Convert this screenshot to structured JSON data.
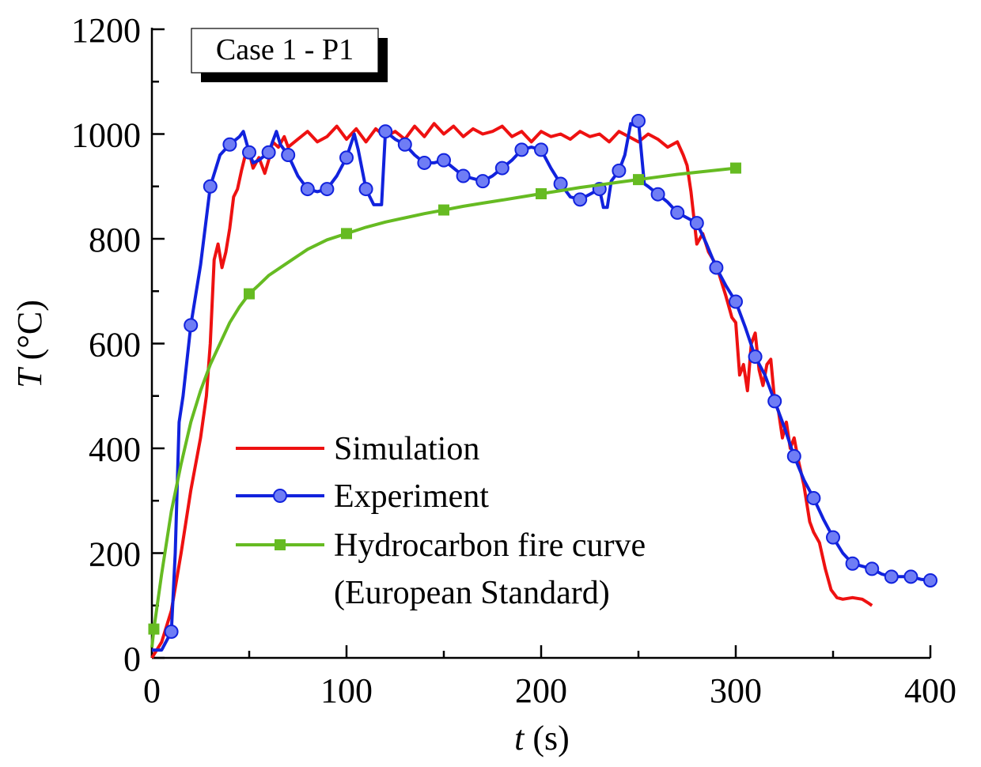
{
  "chart_data": {
    "type": "line",
    "annotation": "Case 1 - P1",
    "xlabel_var": "t",
    "xlabel_unit": " (s)",
    "ylabel_var": "T",
    "ylabel_unit": " (°C)",
    "xlim": [
      0,
      400
    ],
    "ylim": [
      0,
      1200
    ],
    "x_ticks": [
      0,
      100,
      200,
      300,
      400
    ],
    "y_ticks": [
      0,
      200,
      400,
      600,
      800,
      1000,
      1200
    ],
    "legend_position": "bottom-center",
    "series": [
      {
        "name": "Simulation",
        "color": "#ee1111",
        "marker": "none",
        "points": [
          [
            0,
            0
          ],
          [
            5,
            30
          ],
          [
            10,
            90
          ],
          [
            15,
            200
          ],
          [
            20,
            320
          ],
          [
            25,
            420
          ],
          [
            28,
            500
          ],
          [
            30,
            600
          ],
          [
            32,
            760
          ],
          [
            34,
            790
          ],
          [
            36,
            745
          ],
          [
            38,
            775
          ],
          [
            40,
            820
          ],
          [
            42,
            880
          ],
          [
            44,
            895
          ],
          [
            46,
            930
          ],
          [
            48,
            960
          ],
          [
            50,
            965
          ],
          [
            52,
            935
          ],
          [
            55,
            955
          ],
          [
            58,
            925
          ],
          [
            60,
            950
          ],
          [
            62,
            985
          ],
          [
            65,
            975
          ],
          [
            68,
            995
          ],
          [
            70,
            975
          ],
          [
            75,
            990
          ],
          [
            80,
            1005
          ],
          [
            85,
            985
          ],
          [
            90,
            995
          ],
          [
            95,
            1015
          ],
          [
            100,
            990
          ],
          [
            105,
            1010
          ],
          [
            110,
            985
          ],
          [
            115,
            1010
          ],
          [
            120,
            995
          ],
          [
            125,
            1005
          ],
          [
            130,
            990
          ],
          [
            135,
            1015
          ],
          [
            140,
            995
          ],
          [
            145,
            1020
          ],
          [
            150,
            1000
          ],
          [
            155,
            1015
          ],
          [
            160,
            995
          ],
          [
            165,
            1010
          ],
          [
            170,
            1000
          ],
          [
            175,
            1005
          ],
          [
            180,
            1015
          ],
          [
            185,
            995
          ],
          [
            190,
            1005
          ],
          [
            195,
            985
          ],
          [
            200,
            1005
          ],
          [
            205,
            995
          ],
          [
            210,
            1000
          ],
          [
            215,
            990
          ],
          [
            220,
            1005
          ],
          [
            225,
            995
          ],
          [
            230,
            1000
          ],
          [
            235,
            985
          ],
          [
            240,
            1005
          ],
          [
            245,
            995
          ],
          [
            250,
            985
          ],
          [
            255,
            1000
          ],
          [
            260,
            990
          ],
          [
            265,
            975
          ],
          [
            270,
            985
          ],
          [
            273,
            960
          ],
          [
            275,
            940
          ],
          [
            277,
            890
          ],
          [
            280,
            790
          ],
          [
            283,
            810
          ],
          [
            286,
            775
          ],
          [
            290,
            750
          ],
          [
            295,
            690
          ],
          [
            298,
            650
          ],
          [
            300,
            640
          ],
          [
            302,
            540
          ],
          [
            304,
            560
          ],
          [
            306,
            510
          ],
          [
            308,
            600
          ],
          [
            310,
            620
          ],
          [
            312,
            550
          ],
          [
            314,
            520
          ],
          [
            316,
            560
          ],
          [
            318,
            570
          ],
          [
            320,
            490
          ],
          [
            322,
            470
          ],
          [
            324,
            420
          ],
          [
            326,
            450
          ],
          [
            328,
            400
          ],
          [
            330,
            420
          ],
          [
            332,
            380
          ],
          [
            335,
            330
          ],
          [
            338,
            260
          ],
          [
            340,
            240
          ],
          [
            343,
            220
          ],
          [
            346,
            170
          ],
          [
            349,
            130
          ],
          [
            352,
            115
          ],
          [
            355,
            112
          ],
          [
            360,
            115
          ],
          [
            365,
            112
          ],
          [
            368,
            105
          ],
          [
            370,
            100
          ]
        ]
      },
      {
        "name": "Experiment",
        "color": "#1122dd",
        "marker": "circle",
        "points": [
          [
            0,
            15
          ],
          [
            5,
            15
          ],
          [
            10,
            50
          ],
          [
            12,
            200
          ],
          [
            14,
            450
          ],
          [
            16,
            500
          ],
          [
            20,
            635
          ],
          [
            25,
            750
          ],
          [
            30,
            900
          ],
          [
            35,
            960
          ],
          [
            40,
            980
          ],
          [
            45,
            995
          ],
          [
            47,
            1005
          ],
          [
            50,
            965
          ],
          [
            52,
            945
          ],
          [
            55,
            950
          ],
          [
            60,
            965
          ],
          [
            64,
            1005
          ],
          [
            66,
            980
          ],
          [
            70,
            960
          ],
          [
            75,
            920
          ],
          [
            80,
            895
          ],
          [
            85,
            890
          ],
          [
            90,
            895
          ],
          [
            95,
            920
          ],
          [
            100,
            955
          ],
          [
            104,
            1000
          ],
          [
            106,
            970
          ],
          [
            110,
            895
          ],
          [
            114,
            865
          ],
          [
            118,
            865
          ],
          [
            120,
            1005
          ],
          [
            125,
            990
          ],
          [
            130,
            980
          ],
          [
            135,
            960
          ],
          [
            140,
            945
          ],
          [
            145,
            945
          ],
          [
            150,
            950
          ],
          [
            155,
            935
          ],
          [
            160,
            920
          ],
          [
            165,
            915
          ],
          [
            170,
            910
          ],
          [
            175,
            920
          ],
          [
            180,
            935
          ],
          [
            185,
            950
          ],
          [
            190,
            970
          ],
          [
            195,
            975
          ],
          [
            200,
            970
          ],
          [
            205,
            935
          ],
          [
            210,
            905
          ],
          [
            215,
            880
          ],
          [
            220,
            875
          ],
          [
            225,
            885
          ],
          [
            230,
            895
          ],
          [
            232,
            860
          ],
          [
            234,
            860
          ],
          [
            236,
            910
          ],
          [
            240,
            930
          ],
          [
            243,
            960
          ],
          [
            246,
            1020
          ],
          [
            249,
            1015
          ],
          [
            250,
            1025
          ],
          [
            253,
            905
          ],
          [
            255,
            900
          ],
          [
            260,
            885
          ],
          [
            265,
            870
          ],
          [
            270,
            850
          ],
          [
            275,
            840
          ],
          [
            280,
            830
          ],
          [
            285,
            790
          ],
          [
            290,
            745
          ],
          [
            295,
            710
          ],
          [
            300,
            680
          ],
          [
            305,
            630
          ],
          [
            310,
            575
          ],
          [
            315,
            540
          ],
          [
            320,
            490
          ],
          [
            325,
            440
          ],
          [
            330,
            385
          ],
          [
            335,
            340
          ],
          [
            340,
            305
          ],
          [
            345,
            265
          ],
          [
            350,
            230
          ],
          [
            355,
            200
          ],
          [
            360,
            180
          ],
          [
            365,
            175
          ],
          [
            370,
            170
          ],
          [
            375,
            160
          ],
          [
            380,
            155
          ],
          [
            385,
            155
          ],
          [
            390,
            155
          ],
          [
            395,
            150
          ],
          [
            400,
            148
          ]
        ]
      },
      {
        "name": "Hydrocarbon fire curve",
        "name_line2": "(European Standard)",
        "color": "#66bb22",
        "marker": "square",
        "points": [
          [
            0,
            20
          ],
          [
            1,
            55
          ],
          [
            5,
            160
          ],
          [
            10,
            280
          ],
          [
            15,
            370
          ],
          [
            20,
            450
          ],
          [
            25,
            510
          ],
          [
            30,
            560
          ],
          [
            35,
            600
          ],
          [
            40,
            640
          ],
          [
            45,
            670
          ],
          [
            50,
            695
          ],
          [
            55,
            712
          ],
          [
            60,
            730
          ],
          [
            70,
            755
          ],
          [
            80,
            780
          ],
          [
            90,
            798
          ],
          [
            100,
            810
          ],
          [
            110,
            822
          ],
          [
            120,
            832
          ],
          [
            130,
            840
          ],
          [
            140,
            848
          ],
          [
            150,
            855
          ],
          [
            160,
            862
          ],
          [
            170,
            868
          ],
          [
            180,
            874
          ],
          [
            190,
            880
          ],
          [
            200,
            886
          ],
          [
            210,
            892
          ],
          [
            220,
            898
          ],
          [
            230,
            903
          ],
          [
            240,
            908
          ],
          [
            250,
            913
          ],
          [
            260,
            918
          ],
          [
            270,
            923
          ],
          [
            280,
            927
          ],
          [
            290,
            931
          ],
          [
            300,
            935
          ]
        ]
      }
    ]
  }
}
